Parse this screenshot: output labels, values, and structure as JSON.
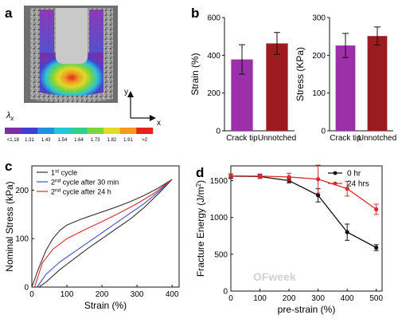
{
  "panels": {
    "a": {
      "label": "a",
      "axis_y": "y",
      "axis_x": "x",
      "colorbar": {
        "symbol": "λ",
        "subscript": "x",
        "ticks": [
          "<1.18",
          "1.31",
          "1.43",
          "1.54",
          "1.64",
          "1.73",
          "1.82",
          "1.91",
          ">2"
        ],
        "colors": [
          "#7a2ea8",
          "#3f3fd6",
          "#1f8fe0",
          "#22c8d8",
          "#2ad28a",
          "#7ad63a",
          "#e2dc24",
          "#f59a1c",
          "#e5231b"
        ]
      }
    },
    "b": {
      "label": "b"
    },
    "c": {
      "label": "c"
    },
    "d": {
      "label": "d"
    }
  },
  "watermark": "OFweek",
  "chart_data": [
    {
      "id": "b-strain",
      "type": "bar",
      "categories": [
        "Crack tip",
        "Unnotched"
      ],
      "values": [
        378,
        463
      ],
      "errors": [
        78,
        58
      ],
      "colors": [
        "#9b30a8",
        "#9c1b1f"
      ],
      "ylabel": "Strain (%)",
      "ylim": [
        0,
        600
      ],
      "yticks": [
        "0",
        "200",
        "400",
        "600"
      ]
    },
    {
      "id": "b-stress",
      "type": "bar",
      "categories": [
        "Crack tip",
        "Unnotched"
      ],
      "values": [
        226,
        251
      ],
      "errors": [
        32,
        24
      ],
      "colors": [
        "#9b30a8",
        "#9c1b1f"
      ],
      "ylabel": "Stress (KPa)",
      "ylim": [
        0,
        300
      ],
      "yticks": [
        "0",
        "100",
        "200",
        "300"
      ]
    },
    {
      "id": "c",
      "type": "line",
      "xlabel": "Strain (%)",
      "ylabel": "Nominal Stress (kPa)",
      "xlim": [
        0,
        420
      ],
      "ylim": [
        0,
        250
      ],
      "xticks": [
        "0",
        "100",
        "200",
        "300",
        "400"
      ],
      "yticks": [
        "0",
        "100",
        "200"
      ],
      "legend_position": "top-left",
      "series": [
        {
          "name_parts": [
            "1",
            "st",
            " cycle"
          ],
          "color": "#333333",
          "x": [
            0,
            20,
            40,
            60,
            80,
            100,
            120,
            140,
            160,
            200,
            240,
            280,
            320,
            360,
            400,
            360,
            320,
            280,
            240,
            200,
            160,
            120,
            80,
            40,
            20
          ],
          "y": [
            0,
            40,
            75,
            100,
            117,
            128,
            134,
            140,
            145,
            155,
            165,
            176,
            189,
            204,
            222,
            192,
            164,
            140,
            120,
            100,
            80,
            58,
            36,
            10,
            0
          ]
        },
        {
          "name_parts": [
            "2",
            "nd",
            " cycle after 30 min"
          ],
          "color": "#3a4fc4",
          "x": [
            15,
            40,
            80,
            120,
            160,
            200,
            240,
            280,
            320,
            360,
            400
          ],
          "y": [
            0,
            26,
            52,
            72,
            92,
            112,
            132,
            152,
            172,
            196,
            222
          ]
        },
        {
          "name_parts": [
            "2",
            "nd",
            " cycle after 24 h"
          ],
          "color": "#d92a2a",
          "x": [
            8,
            30,
            60,
            100,
            150,
            200,
            250,
            300,
            350,
            400
          ],
          "y": [
            0,
            50,
            78,
            100,
            118,
            135,
            153,
            172,
            194,
            222
          ]
        }
      ]
    },
    {
      "id": "d",
      "type": "line",
      "xlabel": "pre-strain (%)",
      "ylabel_main": "Fracture Energy (J/m",
      "ylabel_sup": "2",
      "ylabel_end": ")",
      "xlim": [
        0,
        520
      ],
      "ylim": [
        0,
        1700
      ],
      "xticks": [
        "0",
        "100",
        "200",
        "300",
        "400",
        "500"
      ],
      "yticks": [
        "0",
        "500",
        "1000",
        "1500"
      ],
      "legend_position": "top-right",
      "series": [
        {
          "name": "0 hr",
          "color": "#111111",
          "x": [
            0,
            100,
            200,
            300,
            400,
            500
          ],
          "y": [
            1560,
            1555,
            1500,
            1300,
            800,
            590
          ],
          "err": [
            30,
            25,
            30,
            90,
            110,
            40
          ]
        },
        {
          "name": "24 hrs",
          "color": "#d92a2a",
          "x": [
            0,
            100,
            200,
            300,
            400,
            500
          ],
          "y": [
            1565,
            1560,
            1550,
            1520,
            1390,
            1110
          ],
          "err": [
            25,
            30,
            50,
            190,
            100,
            70
          ]
        }
      ]
    }
  ]
}
